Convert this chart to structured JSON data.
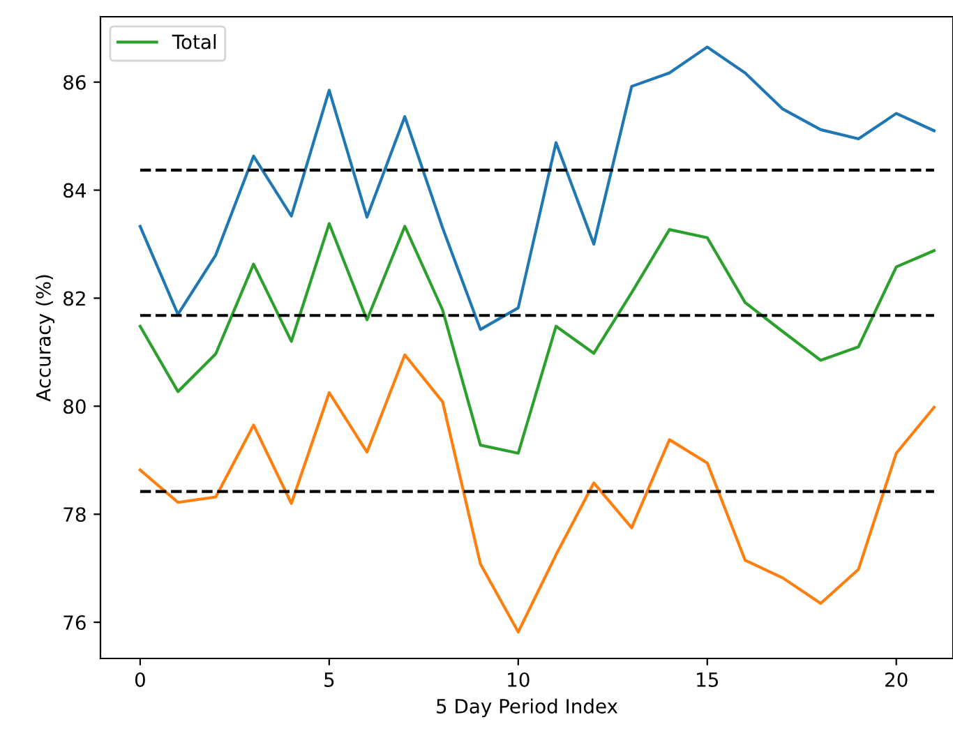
{
  "chart_data": {
    "type": "line",
    "xlabel": "5 Day Period Index",
    "ylabel": "Accuracy (%)",
    "x": [
      0,
      1,
      2,
      3,
      4,
      5,
      6,
      7,
      8,
      9,
      10,
      11,
      12,
      13,
      14,
      15,
      16,
      17,
      18,
      19,
      20,
      21
    ],
    "series": [
      {
        "color": "#1f77b4",
        "values": [
          83.33,
          81.7,
          82.8,
          84.63,
          83.52,
          85.85,
          83.5,
          85.36,
          83.3,
          81.42,
          81.82,
          84.88,
          83.0,
          85.92,
          86.17,
          86.65,
          86.17,
          85.5,
          85.12,
          84.95,
          85.42,
          85.1
        ]
      },
      {
        "color": "#ff7f0e",
        "values": [
          78.82,
          78.22,
          78.32,
          79.65,
          78.2,
          80.25,
          79.15,
          80.95,
          80.08,
          77.08,
          75.82,
          77.25,
          78.58,
          77.75,
          79.38,
          78.95,
          77.15,
          76.82,
          76.35,
          76.98,
          79.13,
          79.98
        ]
      },
      {
        "name": "Total",
        "color": "#2ca02c",
        "values": [
          81.48,
          80.27,
          80.97,
          82.63,
          81.2,
          83.38,
          81.6,
          83.33,
          81.78,
          79.28,
          79.13,
          81.48,
          80.98,
          82.1,
          83.27,
          83.12,
          81.92,
          81.38,
          80.85,
          81.1,
          82.58,
          82.88
        ]
      }
    ],
    "ref_lines": [
      {
        "axis": "y",
        "value": 84.37,
        "color": "#000000",
        "line_style": "dashed"
      },
      {
        "axis": "y",
        "value": 81.68,
        "color": "#000000",
        "line_style": "dashed"
      },
      {
        "axis": "y",
        "value": 78.42,
        "color": "#000000",
        "line_style": "dashed"
      }
    ],
    "xlim": [
      -1.05,
      21.5
    ],
    "xticks": [
      0,
      5,
      10,
      15,
      20
    ],
    "ylim": [
      75.33,
      87.21
    ],
    "yticks": [
      76,
      78,
      80,
      82,
      84,
      86
    ],
    "grid": false,
    "legend": "top left",
    "marker": "none",
    "line_style": "solid"
  }
}
